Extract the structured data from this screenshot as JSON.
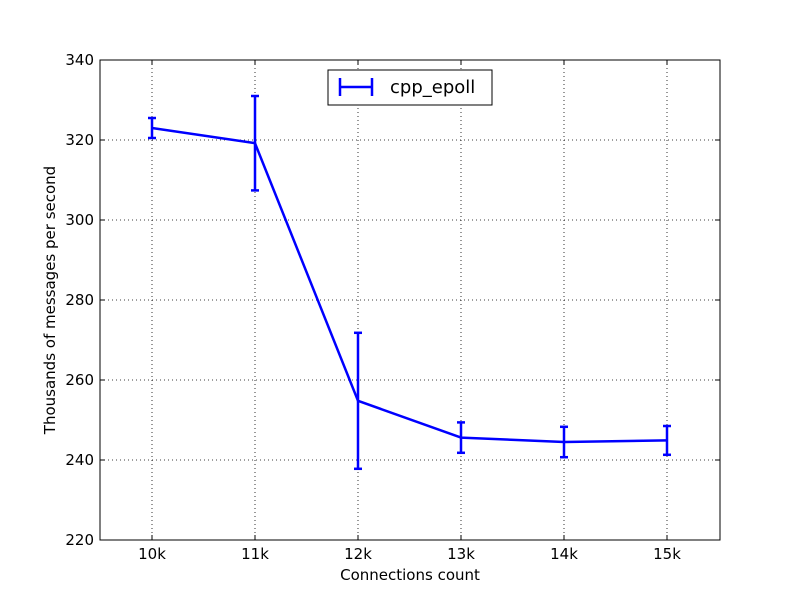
{
  "colors": {
    "series": "#0000ff",
    "background": "#ffffff",
    "axes": "#000000",
    "grid": "#000000"
  },
  "chart_data": {
    "type": "line",
    "title": "",
    "xlabel": "Connections count",
    "ylabel": "Thousands of messages per second",
    "categories": [
      "10k",
      "11k",
      "12k",
      "13k",
      "14k",
      "15k"
    ],
    "ylim": [
      220,
      340
    ],
    "yticks": [
      220,
      240,
      260,
      280,
      300,
      320,
      340
    ],
    "grid": true,
    "error_bars": true,
    "legend_position": "top-center",
    "series": [
      {
        "name": "cpp_epoll",
        "values": [
          323,
          319.2,
          254.8,
          245.6,
          244.5,
          244.9
        ],
        "errors": [
          2.5,
          11.8,
          17,
          3.8,
          3.8,
          3.6
        ]
      }
    ]
  }
}
